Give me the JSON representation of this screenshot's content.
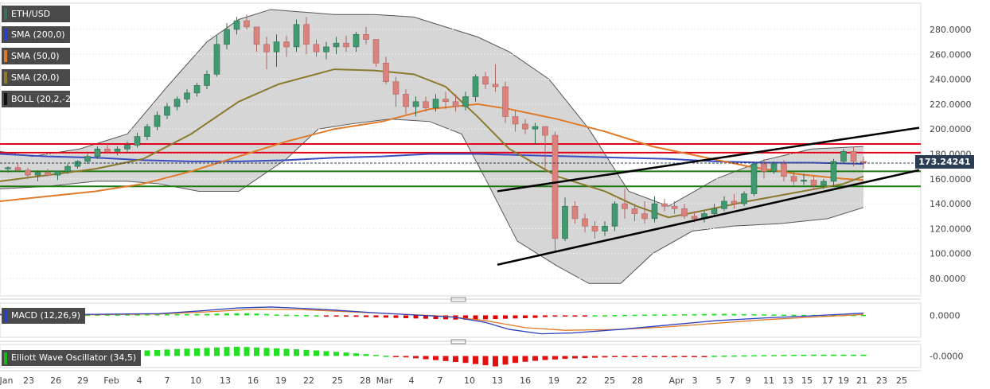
{
  "chart_data": {
    "type": "candlestick",
    "symbol": "ETH/USD",
    "current_price_label": "173.24241",
    "x_ticks": [
      "Jan",
      "23",
      "26",
      "29",
      "Feb",
      "4",
      "7",
      "10",
      "13",
      "16",
      "19",
      "22",
      "25",
      "28",
      "Mar",
      "4",
      "7",
      "10",
      "13",
      "16",
      "19",
      "22",
      "25",
      "28",
      "Apr",
      "3",
      "5",
      "7",
      "9",
      "11",
      "13",
      "15",
      "17",
      "19",
      "21",
      "23",
      "25"
    ],
    "y_ticks": [
      "280.0000",
      "260.0000",
      "240.0000",
      "220.0000",
      "200.0000",
      "180.0000",
      "160.0000",
      "140.0000",
      "120.0000",
      "100.0000",
      "80.0000"
    ],
    "ylim": [
      68,
      298
    ],
    "legend": [
      {
        "label": "ETH/USD",
        "color": "#3e6b5c"
      },
      {
        "label": "SMA (200,0)",
        "color": "#2c3fbf"
      },
      {
        "label": "SMA (50,0)",
        "color": "#e07a28"
      },
      {
        "label": "SMA (20,0)",
        "color": "#8a7a2e"
      },
      {
        "label": "BOLL (20,2,-2)",
        "color": "#111111"
      }
    ],
    "candles_ohlc": [
      [
        168,
        170,
        165,
        169
      ],
      [
        169,
        172,
        166,
        167
      ],
      [
        167,
        169,
        160,
        163
      ],
      [
        163,
        167,
        158,
        165
      ],
      [
        165,
        168,
        162,
        163
      ],
      [
        163,
        166,
        159,
        166
      ],
      [
        166,
        172,
        164,
        170
      ],
      [
        170,
        175,
        168,
        174
      ],
      [
        174,
        180,
        172,
        178
      ],
      [
        178,
        186,
        176,
        184
      ],
      [
        184,
        188,
        180,
        182
      ],
      [
        182,
        186,
        179,
        184
      ],
      [
        184,
        190,
        181,
        187
      ],
      [
        187,
        197,
        185,
        194
      ],
      [
        194,
        204,
        191,
        202
      ],
      [
        202,
        214,
        199,
        211
      ],
      [
        211,
        221,
        208,
        218
      ],
      [
        218,
        226,
        215,
        224
      ],
      [
        224,
        232,
        221,
        229
      ],
      [
        229,
        237,
        226,
        235
      ],
      [
        235,
        247,
        232,
        244
      ],
      [
        244,
        275,
        242,
        268
      ],
      [
        268,
        285,
        264,
        280
      ],
      [
        280,
        290,
        276,
        287
      ],
      [
        287,
        292,
        280,
        282
      ],
      [
        282,
        278,
        262,
        268
      ],
      [
        268,
        274,
        248,
        262
      ],
      [
        262,
        276,
        250,
        270
      ],
      [
        270,
        275,
        258,
        266
      ],
      [
        266,
        288,
        262,
        284
      ],
      [
        284,
        290,
        260,
        268
      ],
      [
        268,
        272,
        258,
        262
      ],
      [
        262,
        270,
        256,
        266
      ],
      [
        266,
        274,
        260,
        269
      ],
      [
        269,
        275,
        262,
        266
      ],
      [
        266,
        278,
        262,
        276
      ],
      [
        276,
        282,
        268,
        272
      ],
      [
        272,
        270,
        250,
        253
      ],
      [
        253,
        258,
        236,
        238
      ],
      [
        238,
        242,
        218,
        228
      ],
      [
        228,
        232,
        212,
        218
      ],
      [
        218,
        226,
        210,
        222
      ],
      [
        222,
        226,
        214,
        217
      ],
      [
        217,
        228,
        214,
        224
      ],
      [
        224,
        230,
        216,
        222
      ],
      [
        222,
        228,
        214,
        218
      ],
      [
        218,
        230,
        215,
        226
      ],
      [
        226,
        244,
        222,
        242
      ],
      [
        242,
        246,
        232,
        236
      ],
      [
        236,
        252,
        230,
        234
      ],
      [
        234,
        238,
        205,
        210
      ],
      [
        210,
        215,
        198,
        204
      ],
      [
        204,
        208,
        196,
        200
      ],
      [
        200,
        205,
        188,
        202
      ],
      [
        202,
        198,
        165,
        195
      ],
      [
        195,
        198,
        102,
        112
      ],
      [
        112,
        145,
        110,
        138
      ],
      [
        138,
        142,
        124,
        128
      ],
      [
        128,
        132,
        117,
        122
      ],
      [
        122,
        126,
        112,
        118
      ],
      [
        118,
        126,
        114,
        122
      ],
      [
        122,
        142,
        118,
        140
      ],
      [
        140,
        152,
        128,
        136
      ],
      [
        136,
        140,
        126,
        132
      ],
      [
        132,
        142,
        124,
        128
      ],
      [
        128,
        146,
        125,
        140
      ],
      [
        140,
        144,
        134,
        138
      ],
      [
        138,
        142,
        132,
        136
      ],
      [
        136,
        140,
        128,
        130
      ],
      [
        130,
        134,
        125,
        128
      ],
      [
        128,
        134,
        125,
        132
      ],
      [
        132,
        140,
        130,
        136
      ],
      [
        136,
        146,
        134,
        142
      ],
      [
        142,
        148,
        136,
        140
      ],
      [
        140,
        150,
        138,
        148
      ],
      [
        148,
        174,
        146,
        172
      ],
      [
        172,
        176,
        160,
        166
      ],
      [
        166,
        174,
        164,
        172
      ],
      [
        172,
        175,
        158,
        162
      ],
      [
        162,
        166,
        155,
        158
      ],
      [
        158,
        164,
        155,
        159
      ],
      [
        159,
        162,
        151,
        155
      ],
      [
        155,
        160,
        152,
        158
      ],
      [
        158,
        176,
        154,
        174
      ],
      [
        174,
        184,
        172,
        182
      ],
      [
        182,
        186,
        170,
        174
      ],
      [
        174,
        178,
        168,
        173
      ]
    ],
    "bollinger_upper_pts": [
      [
        0,
        182
      ],
      [
        40,
        178
      ],
      [
        100,
        184
      ],
      [
        160,
        196
      ],
      [
        210,
        234
      ],
      [
        260,
        270
      ],
      [
        300,
        288
      ],
      [
        340,
        296
      ],
      [
        380,
        294
      ],
      [
        420,
        292
      ],
      [
        470,
        292
      ],
      [
        520,
        290
      ],
      [
        560,
        282
      ],
      [
        600,
        274
      ],
      [
        640,
        262
      ],
      [
        690,
        240
      ],
      [
        740,
        200
      ],
      [
        790,
        150
      ],
      [
        840,
        138
      ],
      [
        900,
        160
      ],
      [
        960,
        175
      ],
      [
        1020,
        184
      ],
      [
        1085,
        186
      ]
    ],
    "bollinger_lower_pts": [
      [
        0,
        152
      ],
      [
        60,
        154
      ],
      [
        120,
        158
      ],
      [
        160,
        158
      ],
      [
        200,
        156
      ],
      [
        250,
        150
      ],
      [
        300,
        150
      ],
      [
        360,
        176
      ],
      [
        400,
        200
      ],
      [
        440,
        204
      ],
      [
        490,
        208
      ],
      [
        540,
        206
      ],
      [
        580,
        196
      ],
      [
        610,
        160
      ],
      [
        650,
        110
      ],
      [
        700,
        90
      ],
      [
        740,
        76
      ],
      [
        780,
        76
      ],
      [
        820,
        100
      ],
      [
        870,
        118
      ],
      [
        920,
        122
      ],
      [
        980,
        124
      ],
      [
        1040,
        128
      ],
      [
        1085,
        137
      ]
    ],
    "sma20_pts": [
      [
        0,
        158
      ],
      [
        60,
        163
      ],
      [
        120,
        168
      ],
      [
        180,
        176
      ],
      [
        240,
        196
      ],
      [
        300,
        222
      ],
      [
        350,
        236
      ],
      [
        420,
        248
      ],
      [
        470,
        247
      ],
      [
        520,
        244
      ],
      [
        560,
        234
      ],
      [
        600,
        210
      ],
      [
        640,
        184
      ],
      [
        700,
        162
      ],
      [
        760,
        150
      ],
      [
        800,
        138
      ],
      [
        840,
        129
      ],
      [
        880,
        134
      ],
      [
        940,
        142
      ],
      [
        1000,
        149
      ],
      [
        1060,
        156
      ],
      [
        1085,
        162
      ]
    ],
    "sma50_pts": [
      [
        0,
        142
      ],
      [
        60,
        146
      ],
      [
        120,
        150
      ],
      [
        180,
        156
      ],
      [
        240,
        166
      ],
      [
        300,
        178
      ],
      [
        360,
        190
      ],
      [
        420,
        200
      ],
      [
        480,
        206
      ],
      [
        540,
        216
      ],
      [
        600,
        220
      ],
      [
        640,
        216
      ],
      [
        700,
        208
      ],
      [
        760,
        198
      ],
      [
        820,
        186
      ],
      [
        880,
        178
      ],
      [
        940,
        170
      ],
      [
        1000,
        164
      ],
      [
        1060,
        160
      ],
      [
        1085,
        159
      ]
    ],
    "sma200_pts": [
      [
        0,
        180
      ],
      [
        60,
        178
      ],
      [
        120,
        177
      ],
      [
        180,
        175
      ],
      [
        240,
        174
      ],
      [
        300,
        174
      ],
      [
        360,
        175
      ],
      [
        420,
        177
      ],
      [
        480,
        178
      ],
      [
        540,
        180
      ],
      [
        600,
        180
      ],
      [
        660,
        179
      ],
      [
        720,
        178
      ],
      [
        780,
        177
      ],
      [
        840,
        176
      ],
      [
        900,
        174
      ],
      [
        960,
        173
      ],
      [
        1020,
        173
      ],
      [
        1085,
        172
      ]
    ],
    "horizontal_levels": [
      {
        "value": 188,
        "color": "#e3001b"
      },
      {
        "value": 181,
        "color": "#e3001b"
      },
      {
        "value": 166,
        "color": "#1d7a12"
      },
      {
        "value": 154,
        "color": "#1d7a12"
      }
    ],
    "trendlines": [
      {
        "x1": 625,
        "y1": 150,
        "x2": 1155,
        "y2": 201
      },
      {
        "x1": 625,
        "y1": 91,
        "x2": 1155,
        "y2": 167
      }
    ],
    "macd": {
      "label": "MACD (12,26,9)",
      "tick": "0.0000",
      "macd_pts": [
        [
          0,
          1.0
        ],
        [
          120,
          1.2
        ],
        [
          200,
          2.0
        ],
        [
          250,
          5.0
        ],
        [
          300,
          8.5
        ],
        [
          340,
          9.5
        ],
        [
          380,
          8.0
        ],
        [
          420,
          6.0
        ],
        [
          470,
          3.0
        ],
        [
          520,
          0.5
        ],
        [
          570,
          -2.0
        ],
        [
          610,
          -8.0
        ],
        [
          640,
          -16.0
        ],
        [
          680,
          -21.0
        ],
        [
          720,
          -20.0
        ],
        [
          780,
          -16.0
        ],
        [
          840,
          -11.0
        ],
        [
          900,
          -6.0
        ],
        [
          960,
          -3.0
        ],
        [
          1020,
          -0.5
        ],
        [
          1085,
          2.5
        ]
      ],
      "signal_pts": [
        [
          0,
          0.5
        ],
        [
          120,
          0.8
        ],
        [
          200,
          1.5
        ],
        [
          260,
          4.0
        ],
        [
          320,
          7.0
        ],
        [
          380,
          6.5
        ],
        [
          440,
          4.0
        ],
        [
          500,
          1.5
        ],
        [
          560,
          -1.0
        ],
        [
          610,
          -6.0
        ],
        [
          660,
          -14.0
        ],
        [
          710,
          -17.0
        ],
        [
          780,
          -16.0
        ],
        [
          840,
          -13.0
        ],
        [
          900,
          -9.0
        ],
        [
          960,
          -5.0
        ],
        [
          1020,
          -2.0
        ],
        [
          1085,
          1.0
        ]
      ],
      "hist": [
        0.3,
        0.3,
        0.3,
        0.3,
        0.3,
        0.4,
        0.4,
        0.5,
        0.5,
        0.6,
        0.6,
        0.6,
        0.7,
        0.7,
        0.8,
        0.8,
        0.8,
        0.9,
        0.9,
        1.0,
        1.0,
        1.2,
        1.4,
        1.5,
        1.5,
        1.3,
        1.0,
        0.6,
        0.4,
        0.3,
        0.2,
        0.0,
        -0.3,
        -0.6,
        -0.8,
        -1.0,
        -1.2,
        -1.4,
        -1.6,
        -1.8,
        -2.0,
        -2.2,
        -2.4,
        -2.6,
        -2.8,
        -3.0,
        -3.0,
        -3.0,
        -2.8,
        -2.6,
        -2.4,
        -2.2,
        -2.0,
        -1.8,
        -1.2,
        -0.6,
        -0.4,
        -0.2,
        -0.1,
        0.0,
        0.1,
        0.2,
        0.3,
        0.4,
        0.5,
        0.6,
        0.6,
        0.7,
        0.8,
        0.9,
        1.0,
        1.1,
        1.1,
        1.0,
        0.9,
        0.8,
        0.7,
        0.6,
        0.5,
        0.4,
        0.3,
        0.3,
        0.3,
        0.3,
        0.3,
        0.3,
        0.3
      ],
      "ylim": [
        -25,
        14
      ]
    },
    "ewo": {
      "label": "Elliott Wave Oscillator (34,5)",
      "tick": "-0.0000",
      "hist": [
        1.0,
        1.2,
        1.4,
        1.5,
        1.7,
        1.9,
        2.1,
        2.4,
        2.7,
        3.0,
        3.3,
        3.6,
        4.0,
        4.4,
        4.8,
        5.2,
        5.6,
        6.0,
        6.3,
        6.6,
        7.0,
        7.4,
        7.8,
        8.0,
        7.8,
        7.4,
        7.0,
        6.6,
        6.2,
        5.8,
        5.3,
        4.8,
        4.2,
        3.6,
        3.0,
        2.3,
        1.6,
        0.9,
        0.2,
        -0.5,
        -1.2,
        -2.0,
        -2.8,
        -3.6,
        -4.4,
        -5.2,
        -6.0,
        -7.0,
        -8.0,
        -9.0,
        -7.5,
        -6.0,
        -5.0,
        -4.2,
        -3.5,
        -3.0,
        -2.5,
        -2.1,
        -1.8,
        -1.5,
        -1.2,
        -1.0,
        -0.8,
        -0.6,
        -0.5,
        -0.4,
        -0.3,
        -0.3,
        -0.2,
        -0.2,
        -0.1,
        0.2,
        0.3,
        0.4,
        0.5,
        0.6,
        0.7,
        0.8,
        0.9,
        1.0,
        1.1,
        1.2,
        1.2,
        1.2,
        1.2,
        1.2,
        1.2
      ],
      "ylim": [
        -10,
        10
      ]
    },
    "candle_x_start": 10,
    "candle_x_step": 12.5
  }
}
